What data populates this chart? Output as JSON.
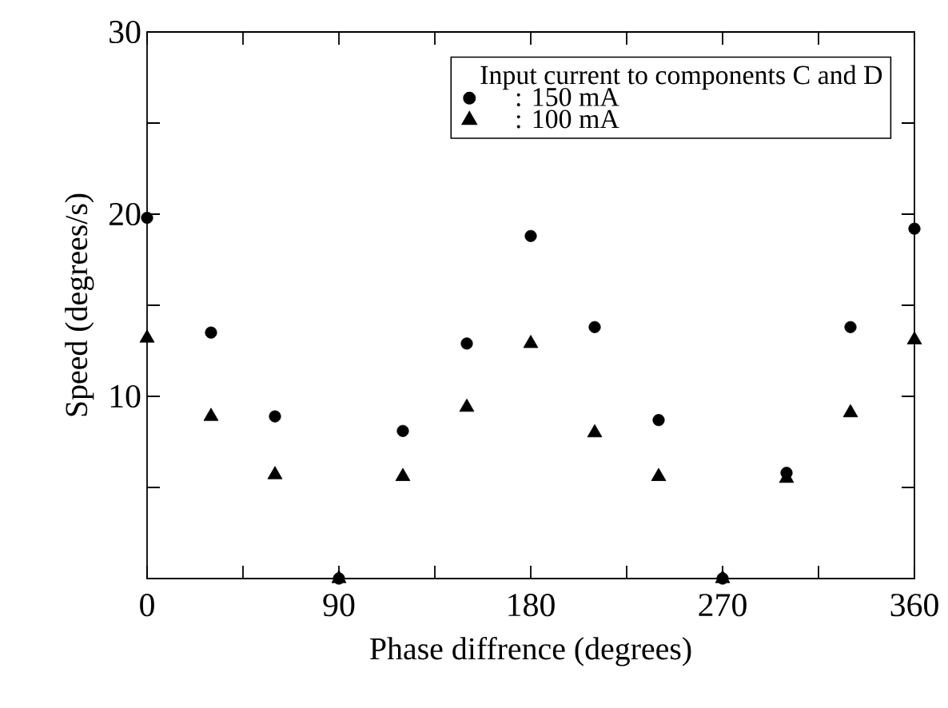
{
  "chart_data": {
    "type": "scatter",
    "xlabel": "Phase diffrence (degrees)",
    "ylabel": "Speed (degrees/s)",
    "legend_title": "Input current to components C and D",
    "x": [
      0,
      30,
      60,
      90,
      120,
      150,
      180,
      210,
      240,
      270,
      300,
      330,
      360
    ],
    "series": [
      {
        "name": ": 150 mA",
        "color": "#000000",
        "marker": "circle",
        "values": [
          19.8,
          13.5,
          8.9,
          0,
          8.1,
          12.9,
          18.8,
          13.8,
          8.7,
          0,
          5.8,
          13.8,
          19.2
        ]
      },
      {
        "name": ": 100 mA",
        "color": "#000000",
        "marker": "triangle",
        "values": [
          13.2,
          8.9,
          5.7,
          0,
          5.6,
          9.4,
          12.9,
          8.0,
          5.6,
          0,
          5.5,
          9.1,
          13.1
        ]
      }
    ],
    "xlim": [
      0,
      360
    ],
    "ylim": [
      0,
      30
    ],
    "xticks": [
      0,
      {
        "value": 45,
        "label": null
      },
      90,
      {
        "value": 135,
        "label": null
      },
      180,
      {
        "value": 225,
        "label": null
      },
      270,
      {
        "value": 315,
        "label": null
      },
      360
    ],
    "yticks": [
      {
        "value": 5,
        "label": null
      },
      10,
      {
        "value": 15,
        "label": null
      },
      20,
      {
        "value": 25,
        "label": null
      },
      30
    ],
    "grid": false,
    "legend": "top right"
  }
}
